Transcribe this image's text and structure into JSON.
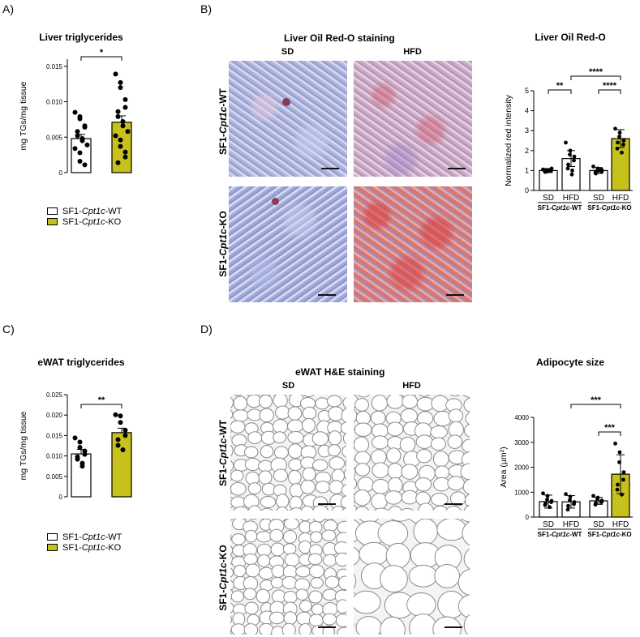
{
  "panel_labels": {
    "a": "A)",
    "b": "B)",
    "c": "C)",
    "d": "D)"
  },
  "colors": {
    "wt": "#ffffff",
    "ko": "#c7c21b",
    "stroke": "#000000",
    "oilred_base": "#b8bedf",
    "oilred_ko_hfd": "#d95a5a",
    "he_base": "#f4f4f4"
  },
  "legend_a": [
    {
      "prefix": "SF1-",
      "gene": "Cpt1c",
      "suffix": "-WT"
    },
    {
      "prefix": "SF1-",
      "gene": "Cpt1c",
      "suffix": "-KO"
    }
  ],
  "legend_c": [
    {
      "prefix": "SF1-",
      "gene": "Cpt1c",
      "suffix": "-WT"
    },
    {
      "prefix": "SF1-",
      "gene": "Cpt1c",
      "suffix": "-KO"
    }
  ],
  "micro_b": {
    "title": "Liver Oil Red-O staining",
    "col_labels": [
      "SD",
      "HFD"
    ],
    "row_labels": [
      {
        "prefix": "SF1-",
        "gene": "Cpt1c",
        "suffix": "-WT"
      },
      {
        "prefix": "SF1-",
        "gene": "Cpt1c",
        "suffix": "-KO"
      }
    ]
  },
  "micro_d": {
    "title": "eWAT H&E staining",
    "col_labels": [
      "SD",
      "HFD"
    ],
    "row_labels": [
      {
        "prefix": "SF1-",
        "gene": "Cpt1c",
        "suffix": "-WT"
      },
      {
        "prefix": "SF1-",
        "gene": "Cpt1c",
        "suffix": "-KO"
      }
    ]
  },
  "chart_data": [
    {
      "id": "liver_tg",
      "type": "bar",
      "title": "Liver triglycerides",
      "ylabel": "mg TGs/mg tissue",
      "yticks": [
        "0",
        "0.005",
        "0.010",
        "0.015"
      ],
      "ylim": [
        0,
        0.016
      ],
      "categories": [
        "SF1-Cpt1c-WT",
        "SF1-Cpt1c-KO"
      ],
      "values": [
        0.0048,
        0.0071
      ],
      "errors": [
        0.0006,
        0.0009
      ],
      "points": [
        [
          0.0085,
          0.0079,
          0.0076,
          0.0066,
          0.0064,
          0.0058,
          0.0052,
          0.0048,
          0.0045,
          0.0039,
          0.0034,
          0.0028,
          0.0016,
          0.0011
        ],
        [
          0.0139,
          0.0127,
          0.012,
          0.0103,
          0.0092,
          0.0086,
          0.0079,
          0.0072,
          0.0066,
          0.0058,
          0.0052,
          0.0046,
          0.0037,
          0.0029,
          0.0022,
          0.0014
        ]
      ],
      "significance": [
        {
          "from": 0,
          "to": 1,
          "label": "*"
        }
      ]
    },
    {
      "id": "liver_oilred",
      "type": "bar",
      "title": "Liver Oil Red-O",
      "ylabel": "Normalized red intensity",
      "yticks": [
        "0",
        "1",
        "2",
        "3",
        "4",
        "5"
      ],
      "ylim": [
        0,
        5
      ],
      "categories": [
        "SD",
        "HFD",
        "SD",
        "HFD"
      ],
      "groups": [
        "SF1-Cpt1c-WT",
        "SF1-Cpt1c-KO"
      ],
      "values": [
        1.0,
        1.6,
        1.0,
        2.6
      ],
      "errors": [
        0.1,
        0.4,
        0.15,
        0.45
      ],
      "points": [
        [
          1.05,
          1.0,
          0.95,
          1.1,
          0.98,
          1.02,
          0.93,
          1.0
        ],
        [
          2.4,
          2.0,
          1.8,
          1.7,
          1.5,
          1.3,
          1.1,
          1.0,
          0.8
        ],
        [
          1.2,
          1.1,
          1.0,
          0.95,
          1.05,
          0.85,
          0.9,
          1.0
        ],
        [
          3.1,
          2.9,
          2.7,
          2.5,
          2.3,
          2.4,
          2.1,
          1.9
        ]
      ],
      "significance": [
        {
          "from": 0,
          "to": 1,
          "label": "**"
        },
        {
          "from": 2,
          "to": 3,
          "label": "****"
        },
        {
          "from": 1,
          "to": 3,
          "label": "****"
        }
      ]
    },
    {
      "id": "ewat_tg",
      "type": "bar",
      "title": "eWAT triglycerides",
      "ylabel": "mg TGs/mg tissue",
      "yticks": [
        "0",
        "0.005",
        "0.010",
        "0.015",
        "0.020",
        "0.025"
      ],
      "ylim": [
        0,
        0.025
      ],
      "categories": [
        "SF1-Cpt1c-WT",
        "SF1-Cpt1c-KO"
      ],
      "values": [
        0.0105,
        0.0157
      ],
      "errors": [
        0.0011,
        0.0011
      ],
      "points": [
        [
          0.0144,
          0.0134,
          0.0121,
          0.0112,
          0.0104,
          0.0098,
          0.0092,
          0.0082,
          0.0075
        ],
        [
          0.0201,
          0.0198,
          0.0182,
          0.0163,
          0.015,
          0.014,
          0.0126,
          0.0115
        ]
      ],
      "significance": [
        {
          "from": 0,
          "to": 1,
          "label": "**"
        }
      ]
    },
    {
      "id": "adipocyte",
      "type": "bar",
      "title": "Adipocyte size",
      "ylabel": "Area (µm²)",
      "yticks": [
        "0",
        "1000",
        "2000",
        "3000",
        "4000"
      ],
      "ylim": [
        0,
        4000
      ],
      "categories": [
        "SD",
        "HFD",
        "SD",
        "HFD"
      ],
      "groups": [
        "SF1-Cpt1c-WT",
        "SF1-Cpt1c-KO"
      ],
      "values": [
        620,
        610,
        650,
        1720
      ],
      "errors": [
        260,
        250,
        140,
        780
      ],
      "points": [
        [
          950,
          850,
          700,
          650,
          600,
          550,
          480,
          400
        ],
        [
          920,
          820,
          680,
          600,
          520,
          450,
          300
        ],
        [
          850,
          780,
          720,
          660,
          600,
          560,
          500
        ],
        [
          2950,
          2600,
          2200,
          1800,
          1500,
          1300,
          1100,
          900
        ]
      ],
      "significance": [
        {
          "from": 2,
          "to": 3,
          "label": "***"
        },
        {
          "from": 1,
          "to": 3,
          "label": "***"
        }
      ]
    }
  ]
}
